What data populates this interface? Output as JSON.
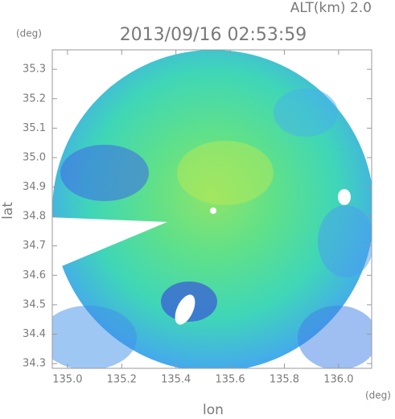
{
  "chart_data": {
    "type": "radar",
    "title": "2013/09/16 02:53:59",
    "subtitle": "ALT(km) 2.0",
    "x_label": "lon",
    "y_label": "lat",
    "x_unit": "(deg)",
    "y_unit": "(deg)",
    "xlim": [
      134.944,
      136.122
    ],
    "ylim": [
      34.284,
      35.366
    ],
    "xticks": [
      {
        "value": 135,
        "label": "135.0"
      },
      135.2,
      135.4,
      135.6,
      135.8,
      {
        "value": 136,
        "label": "136.0"
      }
    ],
    "yticks": [
      34.3,
      34.4,
      34.5,
      34.6,
      34.7,
      34.8,
      34.9,
      {
        "value": 35,
        "label": "35.0"
      },
      35.1,
      35.2,
      35.3
    ]
  }
}
